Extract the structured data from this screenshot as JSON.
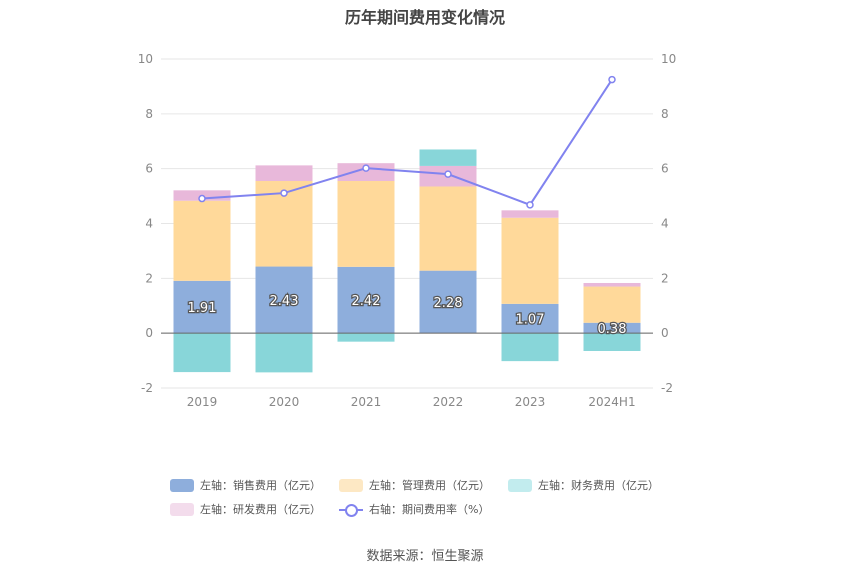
{
  "title": "历年期间费用变化情况",
  "source": "数据来源：恒生聚源",
  "legend": {
    "sales": "左轴：销售费用（亿元）",
    "admin": "左轴：管理费用（亿元）",
    "finance": "左轴：财务费用（亿元）",
    "rd": "左轴：研发费用（亿元）",
    "rate": "右轴：期间费用率（%）"
  },
  "colors": {
    "sales": "#8eaedc",
    "admin": "#ffd99a",
    "finance": "#88d6d9",
    "rd": "#e8b8da",
    "rate": "#8183ef",
    "legend_admin": "#fde8c4",
    "legend_finance": "#c2ecee",
    "legend_rd": "#f3dcec"
  },
  "chart_data": {
    "type": "bar",
    "stacked": true,
    "categories": [
      "2019",
      "2020",
      "2021",
      "2022",
      "2023",
      "2024H1"
    ],
    "series": [
      {
        "key": "sales",
        "name": "左轴：销售费用（亿元）",
        "axis": "left",
        "values": [
          1.91,
          2.43,
          2.42,
          2.28,
          1.07,
          0.38
        ]
      },
      {
        "key": "admin",
        "name": "左轴：管理费用（亿元）",
        "axis": "left",
        "values": [
          2.92,
          3.12,
          3.13,
          3.07,
          3.14,
          1.32
        ]
      },
      {
        "key": "finance",
        "name": "左轴：财务费用（亿元）",
        "axis": "left",
        "values": [
          -1.42,
          -1.43,
          -0.31,
          0.6,
          -1.02,
          -0.65
        ]
      },
      {
        "key": "rd",
        "name": "左轴：研发费用（亿元）",
        "axis": "left",
        "values": [
          0.38,
          0.57,
          0.65,
          0.75,
          0.27,
          0.13
        ]
      },
      {
        "key": "rate",
        "name": "右轴：期间费用率（%）",
        "axis": "right",
        "type": "line",
        "values": [
          4.91,
          5.11,
          6.02,
          5.8,
          4.68,
          9.25
        ]
      }
    ],
    "data_labels": [
      "1.91",
      "2.43",
      "2.42",
      "2.28",
      "1.07",
      "0.38"
    ],
    "left_axis": {
      "ylim": [
        -2,
        10
      ],
      "ticks": [
        "-2",
        "0",
        "2",
        "4",
        "6",
        "8",
        "10"
      ]
    },
    "right_axis": {
      "ylim": [
        -2,
        10
      ],
      "ticks": [
        "-2",
        "0",
        "2",
        "4",
        "6",
        "8",
        "10"
      ]
    },
    "grid": true,
    "legend_position": "bottom"
  }
}
